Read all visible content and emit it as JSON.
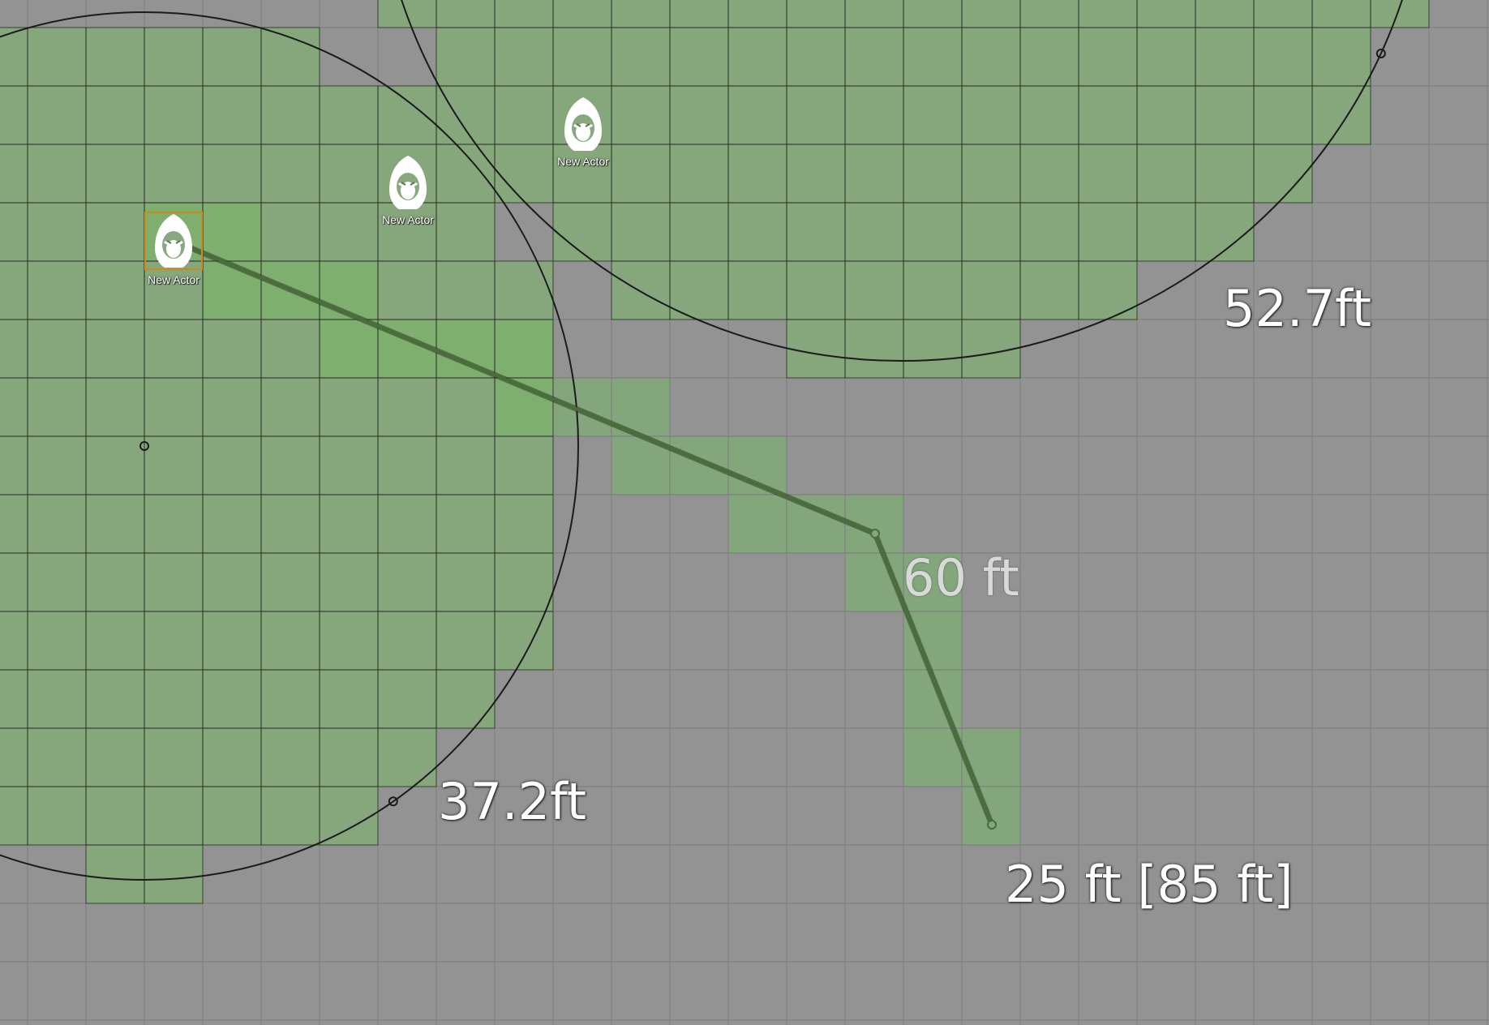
{
  "scene": {
    "colors": {
      "background": "#939393",
      "area_fill": "#86a77c",
      "path_fill": "#7eb06c",
      "waypoint_fill": "#82a87a",
      "grid_line_light": "#808080",
      "grid_line_dark": "#2f3f2a",
      "circle_stroke": "#1b1b1b",
      "ruler_path": "#4a6d3c",
      "token_border_selected": "#d08a1c"
    }
  },
  "templates": [
    {
      "id": "circle-1",
      "label": "37.2ft"
    },
    {
      "id": "circle-2",
      "label": "52.7ft"
    }
  ],
  "ruler": {
    "segments": [
      {
        "label": "60 ft"
      },
      {
        "label": "25 ft [85 ft]"
      }
    ]
  },
  "tokens": [
    {
      "name": "New Actor",
      "icon": "hooded-figure-icon",
      "selected": true
    },
    {
      "name": "New Actor",
      "icon": "hooded-figure-icon",
      "selected": false
    },
    {
      "name": "New Actor",
      "icon": "hooded-figure-icon",
      "selected": false
    }
  ]
}
